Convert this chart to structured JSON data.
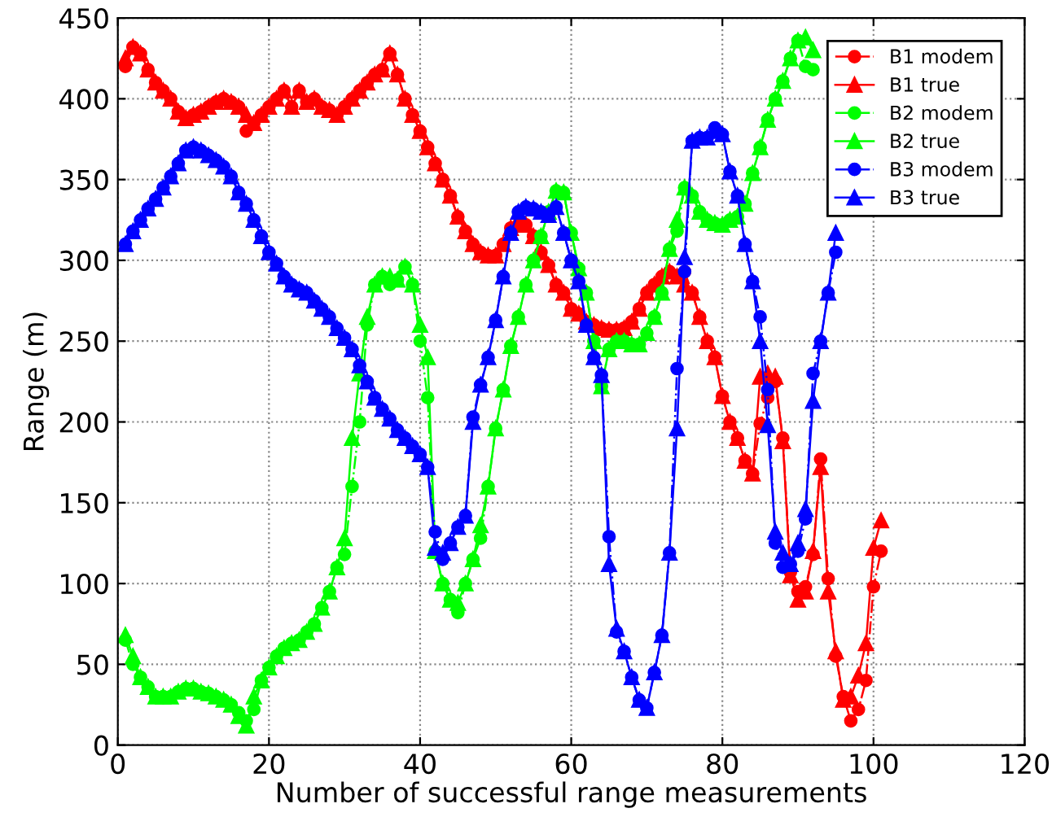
{
  "chart_data": {
    "type": "line",
    "xlabel": "Number of successful range measurements",
    "ylabel": "Range (m)",
    "xlim": [
      0,
      120
    ],
    "xticks": [
      0,
      20,
      40,
      60,
      80,
      100,
      120
    ],
    "ylim": [
      0,
      450
    ],
    "yticks": [
      0,
      50,
      100,
      150,
      200,
      250,
      300,
      350,
      400,
      450
    ],
    "grid": true,
    "legend": "top right",
    "series": [
      {
        "name": "B1 modem",
        "color": "#ff0000",
        "marker": "circle",
        "line_style": "dashed",
        "x": [
          1,
          2,
          3,
          4,
          5,
          6,
          7,
          8,
          9,
          10,
          11,
          12,
          13,
          14,
          15,
          16,
          17,
          18,
          19,
          20,
          21,
          22,
          23,
          24,
          25,
          26,
          27,
          28,
          29,
          30,
          31,
          32,
          33,
          34,
          35,
          36,
          37,
          38,
          39,
          40,
          41,
          42,
          43,
          44,
          45,
          46,
          47,
          48,
          49,
          50,
          51,
          52,
          53,
          54,
          55,
          56,
          57,
          58,
          59,
          60,
          61,
          62,
          63,
          64,
          65,
          66,
          67,
          68,
          69,
          70,
          71,
          72,
          73,
          74,
          75,
          76,
          77,
          78,
          79,
          80,
          81,
          82,
          83,
          84,
          85,
          86,
          87,
          88,
          89,
          90,
          91,
          92,
          93,
          94,
          95,
          96,
          97,
          98,
          99,
          100,
          101
        ],
        "values": [
          420,
          432,
          428,
          418,
          410,
          405,
          400,
          392,
          388,
          390,
          392,
          395,
          398,
          400,
          398,
          395,
          380,
          385,
          390,
          395,
          400,
          405,
          395,
          405,
          398,
          400,
          395,
          393,
          390,
          395,
          400,
          405,
          410,
          415,
          418,
          428,
          415,
          400,
          390,
          380,
          370,
          360,
          350,
          340,
          327,
          318,
          310,
          305,
          303,
          303,
          310,
          320,
          322,
          322,
          315,
          305,
          297,
          285,
          280,
          270,
          267,
          262,
          260,
          258,
          257,
          257,
          258,
          262,
          270,
          280,
          285,
          290,
          293,
          290,
          293,
          280,
          265,
          250,
          240,
          216,
          200,
          190,
          176,
          168,
          199,
          215,
          225,
          190,
          107,
          95,
          98,
          118,
          177,
          103,
          55,
          30,
          15,
          22,
          40,
          98,
          120
        ]
      },
      {
        "name": "B1 true",
        "color": "#ff0000",
        "marker": "triangle",
        "line_style": "solid",
        "x": [
          1,
          2,
          3,
          4,
          5,
          6,
          7,
          8,
          9,
          10,
          11,
          12,
          13,
          14,
          15,
          16,
          17,
          18,
          19,
          20,
          21,
          22,
          23,
          24,
          25,
          26,
          27,
          28,
          29,
          30,
          31,
          32,
          33,
          34,
          35,
          36,
          37,
          38,
          39,
          40,
          41,
          42,
          43,
          44,
          45,
          46,
          47,
          48,
          49,
          50,
          51,
          52,
          53,
          54,
          55,
          56,
          57,
          58,
          59,
          60,
          61,
          62,
          63,
          64,
          65,
          66,
          67,
          68,
          69,
          70,
          71,
          72,
          73,
          74,
          75,
          76,
          77,
          78,
          79,
          80,
          81,
          82,
          83,
          84,
          85,
          86,
          87,
          88,
          89,
          90,
          91,
          92,
          93,
          94,
          95,
          96,
          97,
          98,
          99,
          100,
          101
        ],
        "values": [
          425,
          432,
          428,
          418,
          410,
          405,
          400,
          392,
          388,
          390,
          392,
          395,
          398,
          400,
          398,
          395,
          390,
          385,
          390,
          395,
          400,
          405,
          395,
          405,
          398,
          400,
          395,
          393,
          390,
          395,
          400,
          405,
          410,
          415,
          418,
          428,
          415,
          400,
          390,
          380,
          370,
          360,
          350,
          340,
          327,
          318,
          310,
          305,
          303,
          303,
          310,
          320,
          322,
          322,
          315,
          305,
          297,
          285,
          280,
          270,
          267,
          262,
          260,
          258,
          257,
          257,
          258,
          262,
          270,
          280,
          285,
          290,
          293,
          290,
          285,
          280,
          265,
          250,
          240,
          216,
          200,
          190,
          176,
          168,
          228,
          230,
          228,
          188,
          105,
          90,
          95,
          120,
          172,
          95,
          58,
          28,
          30,
          43,
          63,
          122,
          139
        ]
      },
      {
        "name": "B2 modem",
        "color": "#00ff00",
        "marker": "circle",
        "line_style": "dashed",
        "x": [
          1,
          2,
          3,
          4,
          5,
          6,
          7,
          8,
          9,
          10,
          11,
          12,
          13,
          14,
          15,
          16,
          17,
          18,
          19,
          20,
          21,
          22,
          23,
          24,
          25,
          26,
          27,
          28,
          29,
          30,
          31,
          32,
          33,
          34,
          35,
          36,
          37,
          38,
          39,
          40,
          41,
          42,
          43,
          44,
          45,
          46,
          47,
          48,
          49,
          50,
          51,
          52,
          53,
          54,
          55,
          56,
          57,
          58,
          59,
          60,
          61,
          62,
          63,
          64,
          65,
          66,
          67,
          68,
          69,
          70,
          71,
          72,
          73,
          74,
          75,
          76,
          77,
          78,
          79,
          80,
          81,
          82,
          83,
          84,
          85,
          86,
          87,
          88,
          89,
          90,
          91,
          92
        ],
        "values": [
          65,
          50,
          42,
          36,
          30,
          30,
          30,
          33,
          35,
          35,
          33,
          32,
          30,
          28,
          25,
          20,
          15,
          22,
          40,
          48,
          55,
          60,
          63,
          65,
          70,
          75,
          85,
          95,
          110,
          118,
          160,
          200,
          260,
          285,
          290,
          285,
          288,
          296,
          285,
          250,
          215,
          120,
          100,
          90,
          82,
          100,
          115,
          128,
          160,
          196,
          220,
          247,
          265,
          285,
          300,
          315,
          330,
          343,
          342,
          317,
          295,
          280,
          250,
          222,
          245,
          250,
          250,
          248,
          248,
          255,
          265,
          280,
          307,
          318,
          345,
          340,
          330,
          325,
          323,
          322,
          325,
          327,
          335,
          354,
          370,
          387,
          400,
          411,
          425,
          436,
          420,
          418
        ]
      },
      {
        "name": "B2 true",
        "color": "#00ff00",
        "marker": "triangle",
        "line_style": "solid",
        "x": [
          1,
          2,
          3,
          4,
          5,
          6,
          7,
          8,
          9,
          10,
          11,
          12,
          13,
          14,
          15,
          16,
          17,
          18,
          19,
          20,
          21,
          22,
          23,
          24,
          25,
          26,
          27,
          28,
          29,
          30,
          31,
          32,
          33,
          34,
          35,
          36,
          37,
          38,
          39,
          40,
          41,
          42,
          43,
          44,
          45,
          46,
          47,
          48,
          49,
          50,
          51,
          52,
          53,
          54,
          55,
          56,
          57,
          58,
          59,
          60,
          61,
          62,
          63,
          64,
          65,
          66,
          67,
          68,
          69,
          70,
          71,
          72,
          73,
          74,
          75,
          76,
          77,
          78,
          79,
          80,
          81,
          82,
          83,
          84,
          85,
          86,
          87,
          88,
          89,
          90,
          91,
          92
        ],
        "values": [
          68,
          55,
          42,
          36,
          30,
          30,
          30,
          33,
          35,
          35,
          33,
          32,
          30,
          28,
          25,
          18,
          12,
          30,
          40,
          48,
          55,
          60,
          63,
          65,
          70,
          75,
          85,
          95,
          110,
          128,
          190,
          230,
          265,
          285,
          290,
          290,
          288,
          296,
          285,
          260,
          240,
          120,
          100,
          90,
          88,
          100,
          115,
          136,
          160,
          196,
          220,
          247,
          265,
          285,
          300,
          315,
          330,
          343,
          342,
          317,
          295,
          280,
          250,
          222,
          245,
          250,
          250,
          248,
          248,
          255,
          265,
          280,
          307,
          325,
          345,
          340,
          330,
          325,
          323,
          322,
          325,
          327,
          335,
          354,
          370,
          387,
          400,
          411,
          425,
          436,
          438,
          430
        ]
      },
      {
        "name": "B3 modem",
        "color": "#0000ff",
        "marker": "circle",
        "line_style": "dashed",
        "x": [
          1,
          2,
          3,
          4,
          5,
          6,
          7,
          8,
          9,
          10,
          11,
          12,
          13,
          14,
          15,
          16,
          17,
          18,
          19,
          20,
          21,
          22,
          23,
          24,
          25,
          26,
          27,
          28,
          29,
          30,
          31,
          32,
          33,
          34,
          35,
          36,
          37,
          38,
          39,
          40,
          41,
          42,
          43,
          44,
          45,
          46,
          47,
          48,
          49,
          50,
          51,
          52,
          53,
          54,
          55,
          56,
          57,
          58,
          59,
          60,
          61,
          62,
          63,
          64,
          65,
          66,
          67,
          68,
          69,
          70,
          71,
          72,
          73,
          74,
          75,
          76,
          77,
          78,
          79,
          80,
          81,
          82,
          83,
          84,
          85,
          86,
          87,
          88,
          89,
          90,
          91,
          92,
          93,
          94,
          95
        ],
        "values": [
          310,
          318,
          325,
          332,
          338,
          345,
          352,
          360,
          368,
          370,
          368,
          365,
          362,
          358,
          352,
          342,
          335,
          325,
          315,
          305,
          298,
          290,
          285,
          282,
          280,
          275,
          270,
          265,
          258,
          252,
          245,
          235,
          225,
          215,
          208,
          202,
          195,
          190,
          185,
          180,
          172,
          132,
          115,
          125,
          135,
          142,
          203,
          223,
          240,
          263,
          290,
          317,
          330,
          333,
          332,
          330,
          328,
          333,
          317,
          300,
          287,
          260,
          240,
          229,
          129,
          70,
          58,
          42,
          28,
          23,
          45,
          68,
          119,
          233,
          293,
          374,
          376,
          376,
          382,
          378,
          355,
          340,
          310,
          287,
          265,
          220,
          125,
          110,
          112,
          120,
          140,
          230,
          250,
          280,
          305
        ]
      },
      {
        "name": "B3 true",
        "color": "#0000ff",
        "marker": "triangle",
        "line_style": "solid",
        "x": [
          1,
          2,
          3,
          4,
          5,
          6,
          7,
          8,
          9,
          10,
          11,
          12,
          13,
          14,
          15,
          16,
          17,
          18,
          19,
          20,
          21,
          22,
          23,
          24,
          25,
          26,
          27,
          28,
          29,
          30,
          31,
          32,
          33,
          34,
          35,
          36,
          37,
          38,
          39,
          40,
          41,
          42,
          43,
          44,
          45,
          46,
          47,
          48,
          49,
          50,
          51,
          52,
          53,
          54,
          55,
          56,
          57,
          58,
          59,
          60,
          61,
          62,
          63,
          64,
          65,
          66,
          67,
          68,
          69,
          70,
          71,
          72,
          73,
          74,
          75,
          76,
          77,
          78,
          79,
          80,
          81,
          82,
          83,
          84,
          85,
          86,
          87,
          88,
          89,
          90,
          91,
          92,
          93,
          94,
          95
        ],
        "values": [
          310,
          318,
          325,
          332,
          338,
          345,
          352,
          360,
          368,
          370,
          368,
          365,
          362,
          358,
          352,
          342,
          335,
          325,
          315,
          305,
          298,
          290,
          285,
          282,
          280,
          275,
          270,
          265,
          258,
          252,
          245,
          235,
          225,
          215,
          208,
          202,
          195,
          190,
          185,
          180,
          172,
          122,
          119,
          125,
          135,
          142,
          200,
          223,
          240,
          263,
          290,
          317,
          330,
          333,
          332,
          330,
          328,
          333,
          317,
          300,
          287,
          260,
          240,
          229,
          112,
          72,
          58,
          42,
          28,
          23,
          45,
          68,
          119,
          196,
          302,
          374,
          376,
          376,
          380,
          378,
          355,
          340,
          310,
          287,
          250,
          198,
          132,
          119,
          112,
          125,
          146,
          213,
          250,
          280,
          317
        ]
      }
    ]
  }
}
